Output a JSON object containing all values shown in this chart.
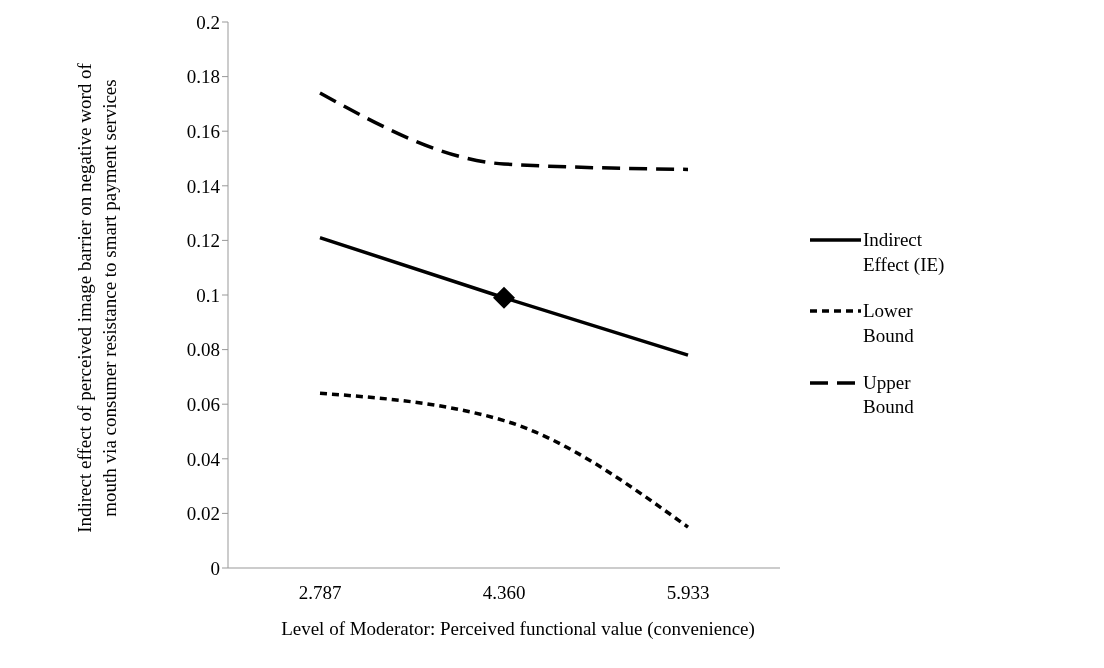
{
  "chart_data": {
    "type": "line",
    "xlabel": "Level of Moderator: Perceived functional value (convenience)",
    "ylabel": "Indirect effect of perceived image barrier on negative word of mouth via consumer resistance to smart payment services",
    "categories": [
      "2.787",
      "4.360",
      "5.933"
    ],
    "ylim": [
      0,
      0.2
    ],
    "yticks": [
      0,
      0.02,
      0.04,
      0.06,
      0.08,
      0.1,
      0.12,
      0.14,
      0.16,
      0.18,
      0.2
    ],
    "grid": false,
    "legend": "right",
    "marker": "none",
    "series": [
      {
        "name": "Indirect Effect (IE)",
        "color": "#000000",
        "values": [
          0.121,
          0.099,
          0.078
        ],
        "line_style": "solid"
      },
      {
        "name": "Lower Bound",
        "color": "#000000",
        "values": [
          0.064,
          0.054,
          0.015
        ],
        "line_style": "dotted"
      },
      {
        "name": "Upper Bound",
        "color": "#000000",
        "values": [
          0.174,
          0.148,
          0.146
        ],
        "line_style": "dashed"
      },
      {
        "type": "scatter",
        "color": "#000000",
        "x": [
          "4.360"
        ],
        "values": [
          0.099
        ],
        "marker": "diamond"
      }
    ]
  }
}
